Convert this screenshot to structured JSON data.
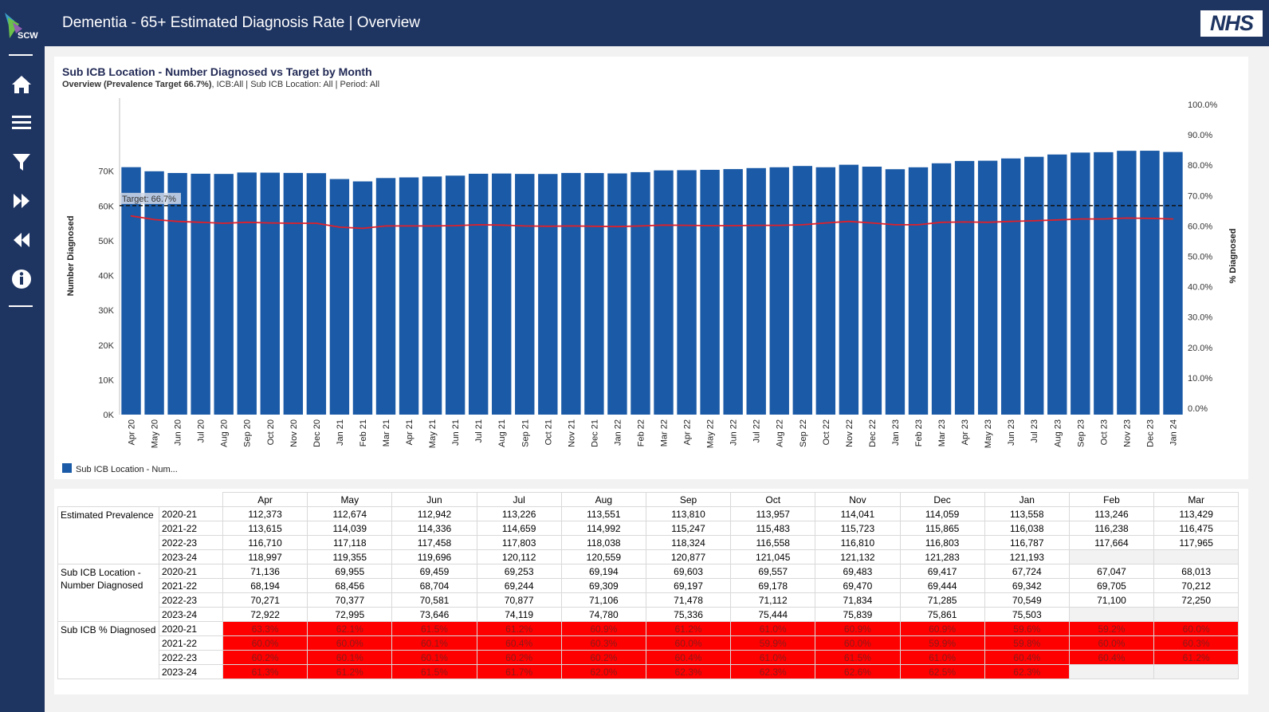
{
  "header": {
    "title": "Dementia - 65+ Estimated Diagnosis Rate | Overview",
    "logo_text": "SCW",
    "nhs_logo": "NHS"
  },
  "sidebar": {
    "icons": [
      "home-icon",
      "menu-icon",
      "filter-icon",
      "fast-forward-icon",
      "rewind-icon",
      "info-icon"
    ]
  },
  "chart": {
    "title": "Sub ICB Location - Number Diagnosed vs Target by Month",
    "subtitle_bold": "Overview (Prevalence Target 66.7%)",
    "subtitle_rest": ", ICB:All | Sub ICB Location: All | Period: All",
    "legend_label": "Sub ICB Location - Num..."
  },
  "chart_data": {
    "type": "bar",
    "categories": [
      "Apr 20",
      "May 20",
      "Jun 20",
      "Jul 20",
      "Aug 20",
      "Sep 20",
      "Oct 20",
      "Nov 20",
      "Dec 20",
      "Jan 21",
      "Feb 21",
      "Mar 21",
      "Apr 21",
      "May 21",
      "Jun 21",
      "Jul 21",
      "Aug 21",
      "Sep 21",
      "Oct 21",
      "Nov 21",
      "Dec 21",
      "Jan 22",
      "Feb 22",
      "Mar 22",
      "Apr 22",
      "May 22",
      "Jun 22",
      "Jul 22",
      "Aug 22",
      "Sep 22",
      "Oct 22",
      "Nov 22",
      "Dec 22",
      "Jan 23",
      "Feb 23",
      "Mar 23",
      "Apr 23",
      "May 23",
      "Jun 23",
      "Jul 23",
      "Aug 23",
      "Sep 23",
      "Oct 23",
      "Nov 23",
      "Dec 23",
      "Jan 24"
    ],
    "series": [
      {
        "name": "Sub ICB Location - Num...",
        "axis": "left",
        "values": [
          71136,
          69955,
          69459,
          69253,
          69194,
          69603,
          69557,
          69483,
          69417,
          67724,
          67047,
          68013,
          68194,
          68456,
          68704,
          69244,
          69309,
          69197,
          69178,
          69470,
          69444,
          69342,
          69705,
          70212,
          70271,
          70377,
          70581,
          70877,
          71106,
          71478,
          71112,
          71834,
          71285,
          70549,
          71100,
          72250,
          72922,
          72995,
          73646,
          74119,
          74780,
          75336,
          75444,
          75839,
          75861,
          75503
        ]
      },
      {
        "axis": "right",
        "color": "#e0202a",
        "values": [
          63.3,
          62.1,
          61.5,
          61.2,
          60.9,
          61.2,
          61.0,
          60.9,
          60.9,
          59.6,
          59.2,
          60.0,
          60.0,
          60.0,
          60.1,
          60.4,
          60.3,
          60.0,
          59.9,
          60.0,
          59.9,
          59.8,
          60.0,
          60.3,
          60.2,
          60.1,
          60.1,
          60.2,
          60.2,
          60.4,
          61.0,
          61.5,
          61.0,
          60.4,
          60.4,
          61.2,
          61.3,
          61.2,
          61.5,
          61.7,
          62.0,
          62.3,
          62.3,
          62.6,
          62.5,
          62.3
        ]
      }
    ],
    "target": {
      "label": "Target: 66.7%",
      "value": 66.7
    },
    "ylabel": "Number Diagnosed",
    "y2label": "% Diagnosed",
    "ylim": [
      0,
      80000
    ],
    "y2lim": [
      0,
      100
    ],
    "left_ticks": [
      "0K",
      "10K",
      "20K",
      "30K",
      "40K",
      "50K",
      "60K",
      "70K"
    ],
    "right_ticks": [
      "0.0%",
      "10.0%",
      "20.0%",
      "30.0%",
      "40.0%",
      "50.0%",
      "60.0%",
      "70.0%",
      "80.0%",
      "90.0%",
      "100.0%"
    ],
    "bar_color": "#1b5aa6",
    "legend_position": "bottom-left",
    "grid": false
  },
  "table": {
    "months": [
      "Apr",
      "May",
      "Jun",
      "Jul",
      "Aug",
      "Sep",
      "Oct",
      "Nov",
      "Dec",
      "Jan",
      "Feb",
      "Mar"
    ],
    "groups": [
      {
        "label": "Estimated Prevalence",
        "rows": [
          {
            "year": "2020-21",
            "values": [
              "112,373",
              "112,674",
              "112,942",
              "113,226",
              "113,551",
              "113,810",
              "113,957",
              "114,041",
              "114,059",
              "113,558",
              "113,246",
              "113,429"
            ]
          },
          {
            "year": "2021-22",
            "values": [
              "113,615",
              "114,039",
              "114,336",
              "114,659",
              "114,992",
              "115,247",
              "115,483",
              "115,723",
              "115,865",
              "116,038",
              "116,238",
              "116,475"
            ]
          },
          {
            "year": "2022-23",
            "values": [
              "116,710",
              "117,118",
              "117,458",
              "117,803",
              "118,038",
              "118,324",
              "116,558",
              "116,810",
              "116,803",
              "116,787",
              "117,664",
              "117,965"
            ]
          },
          {
            "year": "2023-24",
            "values": [
              "118,997",
              "119,355",
              "119,696",
              "120,112",
              "120,559",
              "120,877",
              "121,045",
              "121,132",
              "121,283",
              "121,193",
              "",
              ""
            ]
          }
        ]
      },
      {
        "label": "Sub ICB Location - Number Diagnosed",
        "rows": [
          {
            "year": "2020-21",
            "values": [
              "71,136",
              "69,955",
              "69,459",
              "69,253",
              "69,194",
              "69,603",
              "69,557",
              "69,483",
              "69,417",
              "67,724",
              "67,047",
              "68,013"
            ]
          },
          {
            "year": "2021-22",
            "values": [
              "68,194",
              "68,456",
              "68,704",
              "69,244",
              "69,309",
              "69,197",
              "69,178",
              "69,470",
              "69,444",
              "69,342",
              "69,705",
              "70,212"
            ]
          },
          {
            "year": "2022-23",
            "values": [
              "70,271",
              "70,377",
              "70,581",
              "70,877",
              "71,106",
              "71,478",
              "71,112",
              "71,834",
              "71,285",
              "70,549",
              "71,100",
              "72,250"
            ]
          },
          {
            "year": "2023-24",
            "values": [
              "72,922",
              "72,995",
              "73,646",
              "74,119",
              "74,780",
              "75,336",
              "75,444",
              "75,839",
              "75,861",
              "75,503",
              "",
              ""
            ]
          }
        ]
      },
      {
        "label": "Sub ICB % Diagnosed",
        "highlight": "#ff0000",
        "rows": [
          {
            "year": "2020-21",
            "values": [
              "63.3%",
              "62.1%",
              "61.5%",
              "61.2%",
              "60.9%",
              "61.2%",
              "61.0%",
              "60.9%",
              "60.9%",
              "59.6%",
              "59.2%",
              "60.0%"
            ]
          },
          {
            "year": "2021-22",
            "values": [
              "60.0%",
              "60.0%",
              "60.1%",
              "60.4%",
              "60.3%",
              "60.0%",
              "59.9%",
              "60.0%",
              "59.9%",
              "59.8%",
              "60.0%",
              "60.3%"
            ]
          },
          {
            "year": "2022-23",
            "values": [
              "60.2%",
              "60.1%",
              "60.1%",
              "60.2%",
              "60.2%",
              "60.4%",
              "61.0%",
              "61.5%",
              "61.0%",
              "60.4%",
              "60.4%",
              "61.2%"
            ]
          },
          {
            "year": "2023-24",
            "values": [
              "61.3%",
              "61.2%",
              "61.5%",
              "61.7%",
              "62.0%",
              "62.3%",
              "62.3%",
              "62.6%",
              "62.5%",
              "62.3%",
              "",
              ""
            ]
          }
        ]
      }
    ]
  }
}
